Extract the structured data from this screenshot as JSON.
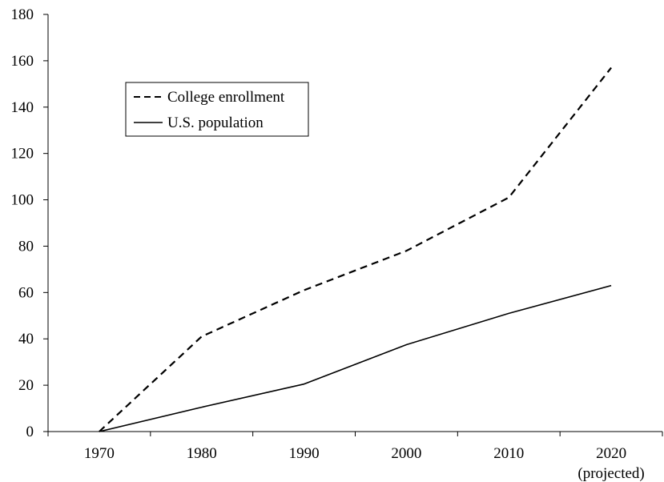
{
  "chart_data": {
    "type": "line",
    "title": "",
    "xlabel": "",
    "ylabel": "",
    "categories": [
      "1970",
      "1980",
      "1990",
      "2000",
      "2010",
      "2020"
    ],
    "x_tick_labels": [
      "1970",
      "1980",
      "1990",
      "2000",
      "2010",
      "2020"
    ],
    "x_tick_sublabels": [
      "",
      "",
      "",
      "",
      "",
      "(projected)"
    ],
    "ylim": [
      0,
      180
    ],
    "y_ticks": [
      0,
      20,
      40,
      60,
      80,
      100,
      120,
      140,
      160,
      180
    ],
    "grid": false,
    "legend": {
      "placement": "upper-left, inside plot",
      "entries": [
        "College enrollment",
        "U.S. population"
      ]
    },
    "series": [
      {
        "name": "College enrollment",
        "style": "dashed",
        "color": "#000000",
        "values": [
          0,
          41,
          61,
          78,
          101,
          157
        ]
      },
      {
        "name": "U.S. population",
        "style": "solid",
        "color": "#000000",
        "values": [
          0,
          10.5,
          20.5,
          37.5,
          51,
          63
        ]
      }
    ]
  }
}
